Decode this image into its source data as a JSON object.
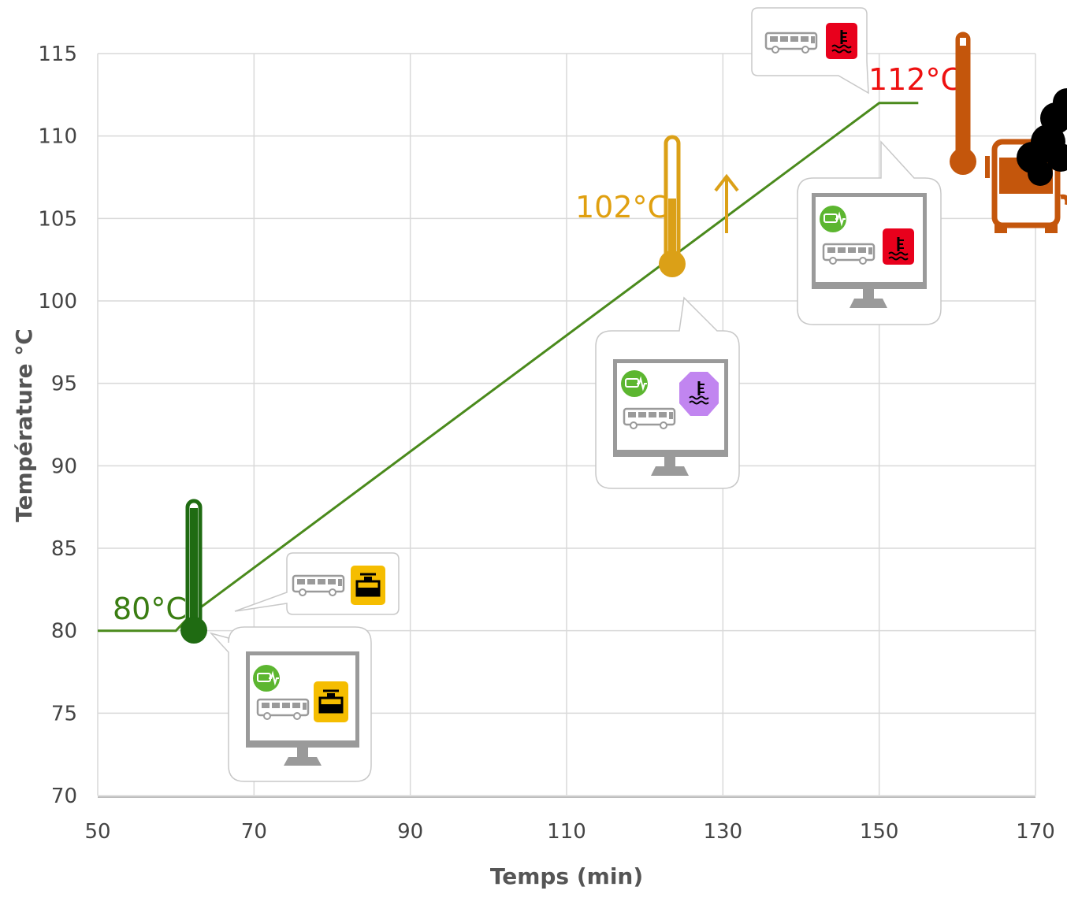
{
  "chart_data": {
    "type": "line",
    "xlabel": "Temps (min)",
    "ylabel": "Température °C",
    "xlim": [
      50,
      170
    ],
    "ylim": [
      70,
      115
    ],
    "x_ticks": [
      "50",
      "70",
      "90",
      "110",
      "130",
      "150",
      "170"
    ],
    "y_ticks": [
      "115",
      "110",
      "105",
      "100",
      "95",
      "90",
      "85",
      "80",
      "75",
      "70"
    ],
    "grid": true,
    "series": [
      {
        "x": [
          50,
          60,
          62,
          150,
          155
        ],
        "y": [
          80,
          80,
          81,
          112,
          112
        ],
        "color": "#4a8a1c"
      }
    ],
    "annotations": [
      {
        "text": "80°C",
        "x": 62,
        "y": 80,
        "color": "#3a7d12",
        "icon": "thermometer-low-icon"
      },
      {
        "text": "102°C",
        "x": 124,
        "y": 102,
        "color": "#e0a010",
        "icon": "thermometer-mid-icon"
      },
      {
        "text": "112°C",
        "x": 151,
        "y": 112,
        "color": "#ee1111",
        "icon": "thermometer-high-icon"
      }
    ]
  },
  "colors": {
    "line": "#4a8a1c",
    "low": "#1f6b12",
    "mid": "#dba017",
    "high": "#c4560c",
    "warn_yellow": "#f5bd00",
    "alert_red": "#e8001c",
    "alert_purple": "#c185f0",
    "eco_green": "#5cb630"
  },
  "icons": {
    "bus": "bus-icon",
    "coolant_level": "coolant-level-icon",
    "coolant_temp": "coolant-temperature-icon",
    "monitor": "monitor-icon",
    "eco": "eco-bus-icon",
    "arrow_up": "arrow-up-icon",
    "bus_smoke": "overheating-bus-icon"
  }
}
